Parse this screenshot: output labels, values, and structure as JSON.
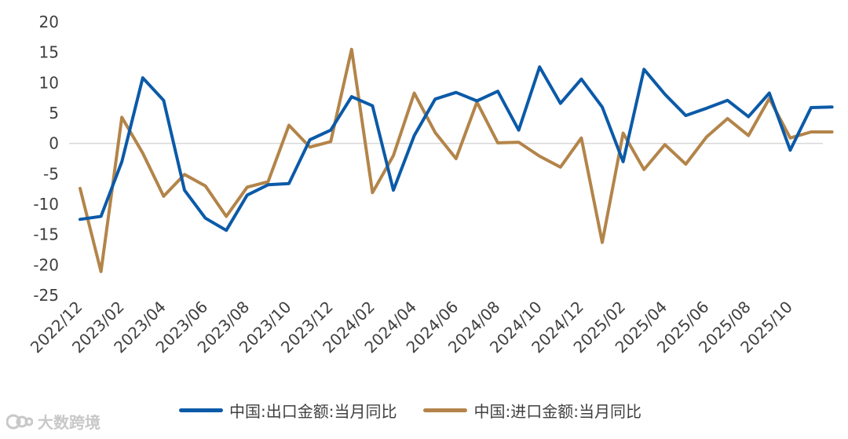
{
  "chart_data": {
    "type": "line",
    "x": [
      "2022/12",
      "2023/01",
      "2023/02",
      "2023/03",
      "2023/04",
      "2023/05",
      "2023/06",
      "2023/07",
      "2023/08",
      "2023/09",
      "2023/10",
      "2023/11",
      "2023/12",
      "2024/01",
      "2024/02",
      "2024/03",
      "2024/04",
      "2024/05",
      "2024/06",
      "2024/07",
      "2024/08",
      "2024/09",
      "2024/10",
      "2024/11",
      "2024/12",
      "2025/01",
      "2025/02",
      "2025/03",
      "2025/04",
      "2025/05",
      "2025/06",
      "2025/07",
      "2025/08",
      "2025/09",
      "2025/10",
      "2025/11",
      "2025/12"
    ],
    "x_tick_labels": [
      "2022/12",
      "2023/02",
      "2023/04",
      "2023/06",
      "2023/08",
      "2023/10",
      "2023/12",
      "2024/02",
      "2024/04",
      "2024/06",
      "2024/08",
      "2024/10",
      "2024/12",
      "2025/02",
      "2025/04",
      "2025/06",
      "2025/08",
      "2025/10"
    ],
    "series": [
      {
        "name": "中国:出口金额:当月同比",
        "color": "#0b5aa8",
        "values": [
          -12.5,
          -12.0,
          -3.0,
          10.8,
          7.1,
          -7.7,
          -12.3,
          -14.3,
          -8.5,
          -6.8,
          -6.6,
          0.6,
          2.2,
          7.7,
          6.2,
          -7.7,
          1.3,
          7.3,
          8.4,
          7.0,
          8.6,
          2.2,
          12.6,
          6.6,
          10.6,
          6.0,
          -3.0,
          12.2,
          8.1,
          4.6,
          5.8,
          7.1,
          4.4,
          8.3,
          -1.1,
          5.9,
          6.0
        ]
      },
      {
        "name": "中国:进口金额:当月同比",
        "color": "#b38449",
        "values": [
          -7.4,
          -21.1,
          4.3,
          -1.6,
          -8.7,
          -5.1,
          -7.0,
          -12.0,
          -7.2,
          -6.3,
          3.0,
          -0.6,
          0.3,
          15.5,
          -8.1,
          -2.0,
          8.3,
          1.8,
          -2.5,
          6.8,
          0.1,
          0.2,
          -2.1,
          -3.9,
          0.9,
          -16.3,
          1.7,
          -4.3,
          -0.2,
          -3.4,
          1.1,
          4.1,
          1.3,
          7.4,
          0.9,
          1.9,
          1.9
        ]
      }
    ],
    "y_ticks": [
      20,
      15,
      10,
      5,
      0,
      -5,
      -10,
      -15,
      -20,
      -25
    ],
    "ylim": [
      -25,
      20
    ],
    "legend_position": "bottom",
    "grid": false,
    "title": "",
    "xlabel": "",
    "ylabel": ""
  },
  "watermark": {
    "text": "大数跨境"
  }
}
